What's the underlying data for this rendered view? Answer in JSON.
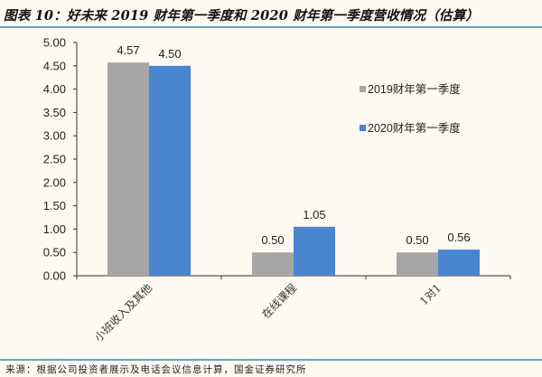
{
  "header": {
    "title": "图表 10：好未来 2019 财年第一季度和 2020 财年第一季度营收情况（估算）"
  },
  "footer": {
    "source": "来源：根据公司投资者展示及电话会议信息计算，国金证券研究所"
  },
  "colors": {
    "series_2019": "#a6a6a6",
    "series_2020": "#4a85d0",
    "rule": "#5aa8c8",
    "background": "#fdfaf2"
  },
  "chart_data": {
    "type": "bar",
    "title": "好未来 2019 财年第一季度和 2020 财年第一季度营收情况（估算）",
    "xlabel": "",
    "ylabel": "",
    "categories": [
      "小班收入及其他",
      "在线课程",
      "1对1"
    ],
    "series": [
      {
        "name": "2019财年第一季度",
        "values": [
          4.57,
          0.5,
          0.5
        ]
      },
      {
        "name": "2020财年第一季度",
        "values": [
          4.5,
          1.05,
          0.56
        ]
      }
    ],
    "value_labels": [
      [
        "4.57",
        "0.50",
        "0.50"
      ],
      [
        "4.50",
        "1.05",
        "0.56"
      ]
    ],
    "yticks": [
      "0.00",
      "0.50",
      "1.00",
      "1.50",
      "2.00",
      "2.50",
      "3.00",
      "3.50",
      "4.00",
      "4.50",
      "5.00"
    ],
    "ylim": [
      0,
      5
    ],
    "grid": false,
    "legend_position": "right-inside"
  }
}
